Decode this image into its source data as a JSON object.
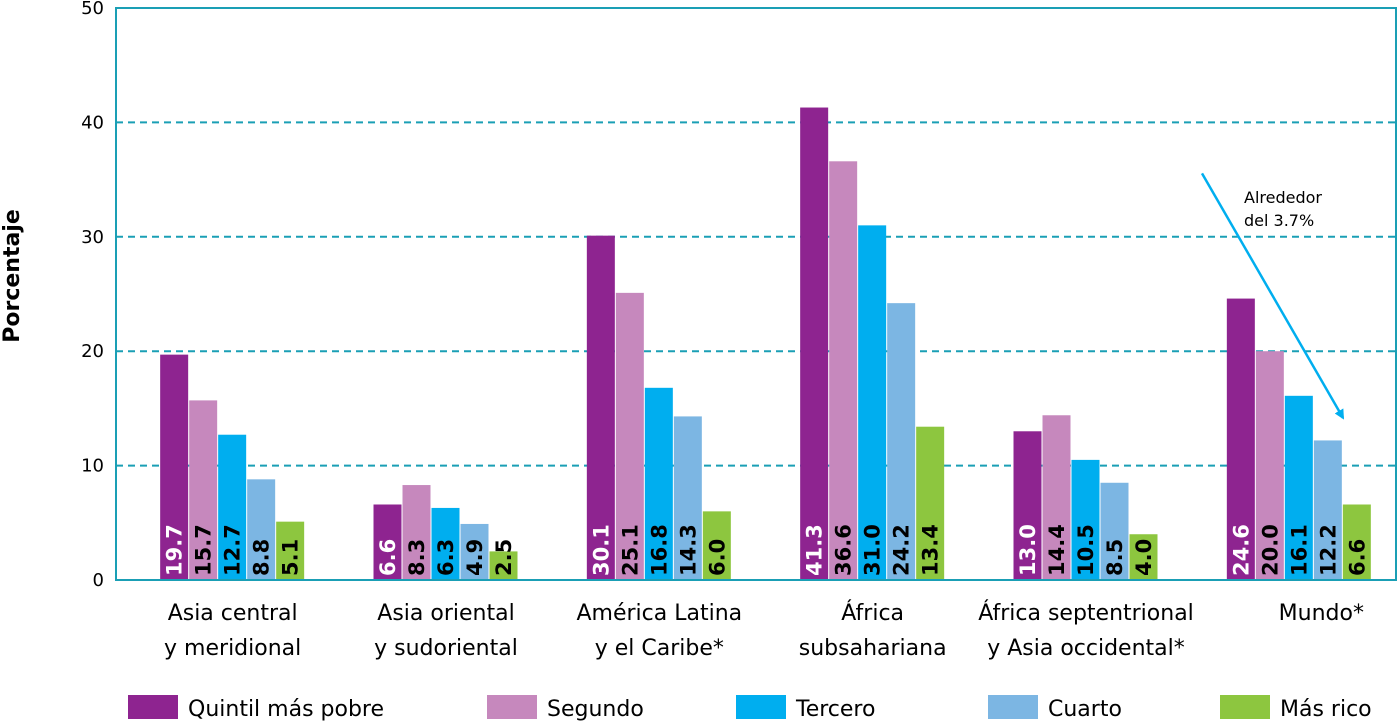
{
  "chart_data": {
    "type": "bar",
    "title": "",
    "xlabel": "",
    "ylabel": "Porcentaje",
    "ylim": [
      0,
      50
    ],
    "yticks": [
      0,
      10,
      20,
      30,
      40,
      50
    ],
    "grid": "horizontal dashed",
    "legend_position": "bottom",
    "categories": [
      [
        "Asia central",
        "y meridional"
      ],
      [
        "Asia oriental",
        "y sudoriental"
      ],
      [
        "América Latina",
        "y el Caribe*"
      ],
      [
        "África",
        "subsahariana"
      ],
      [
        "África septentrional",
        "y Asia occidental*"
      ],
      [
        "Mundo*"
      ]
    ],
    "series": [
      {
        "name": "Quintil más pobre",
        "color": "#8e2490",
        "values": [
          19.7,
          6.6,
          30.1,
          41.3,
          13.0,
          24.6
        ],
        "labels": [
          "19.7",
          "6.6",
          "30.1",
          "41.3",
          "13.0",
          "24.6"
        ],
        "label_color": "#ffffff"
      },
      {
        "name": "Segundo",
        "color": "#c688bd",
        "values": [
          15.7,
          8.3,
          25.1,
          36.6,
          14.4,
          20.0
        ],
        "labels": [
          "15.7",
          "8.3",
          "25.1",
          "36.6",
          "14.4",
          "20.0"
        ],
        "label_color": "#000000"
      },
      {
        "name": "Tercero",
        "color": "#00aeef",
        "values": [
          12.7,
          6.3,
          16.8,
          31.0,
          10.5,
          16.1
        ],
        "labels": [
          "12.7",
          "6.3",
          "16.8",
          "31.0",
          "10.5",
          "16.1"
        ],
        "label_color": "#000000"
      },
      {
        "name": "Cuarto",
        "color": "#7cb6e3",
        "values": [
          8.8,
          4.9,
          14.3,
          24.2,
          8.5,
          12.2
        ],
        "labels": [
          "8.8",
          "4.9",
          "14.3",
          "24.2",
          "8.5",
          "12.2"
        ],
        "label_color": "#000000"
      },
      {
        "name": "Más rico",
        "color": "#8dc63f",
        "values": [
          5.1,
          2.5,
          6.0,
          13.4,
          4.0,
          6.6
        ],
        "labels": [
          "5.1",
          "2.5",
          "6.0",
          "13.4",
          "4.0",
          "6.6"
        ],
        "label_color": "#000000"
      }
    ],
    "annotations": [
      {
        "lines": [
          "Alrededor",
          "del 3.7%"
        ],
        "arrow_color": "#00aeef",
        "arrow_from": [
          5,
          34.5
        ],
        "arrow_to": [
          5,
          14
        ]
      }
    ],
    "colors": {
      "axis": "#1a9fb5",
      "grid": "#1a9fb5"
    }
  }
}
